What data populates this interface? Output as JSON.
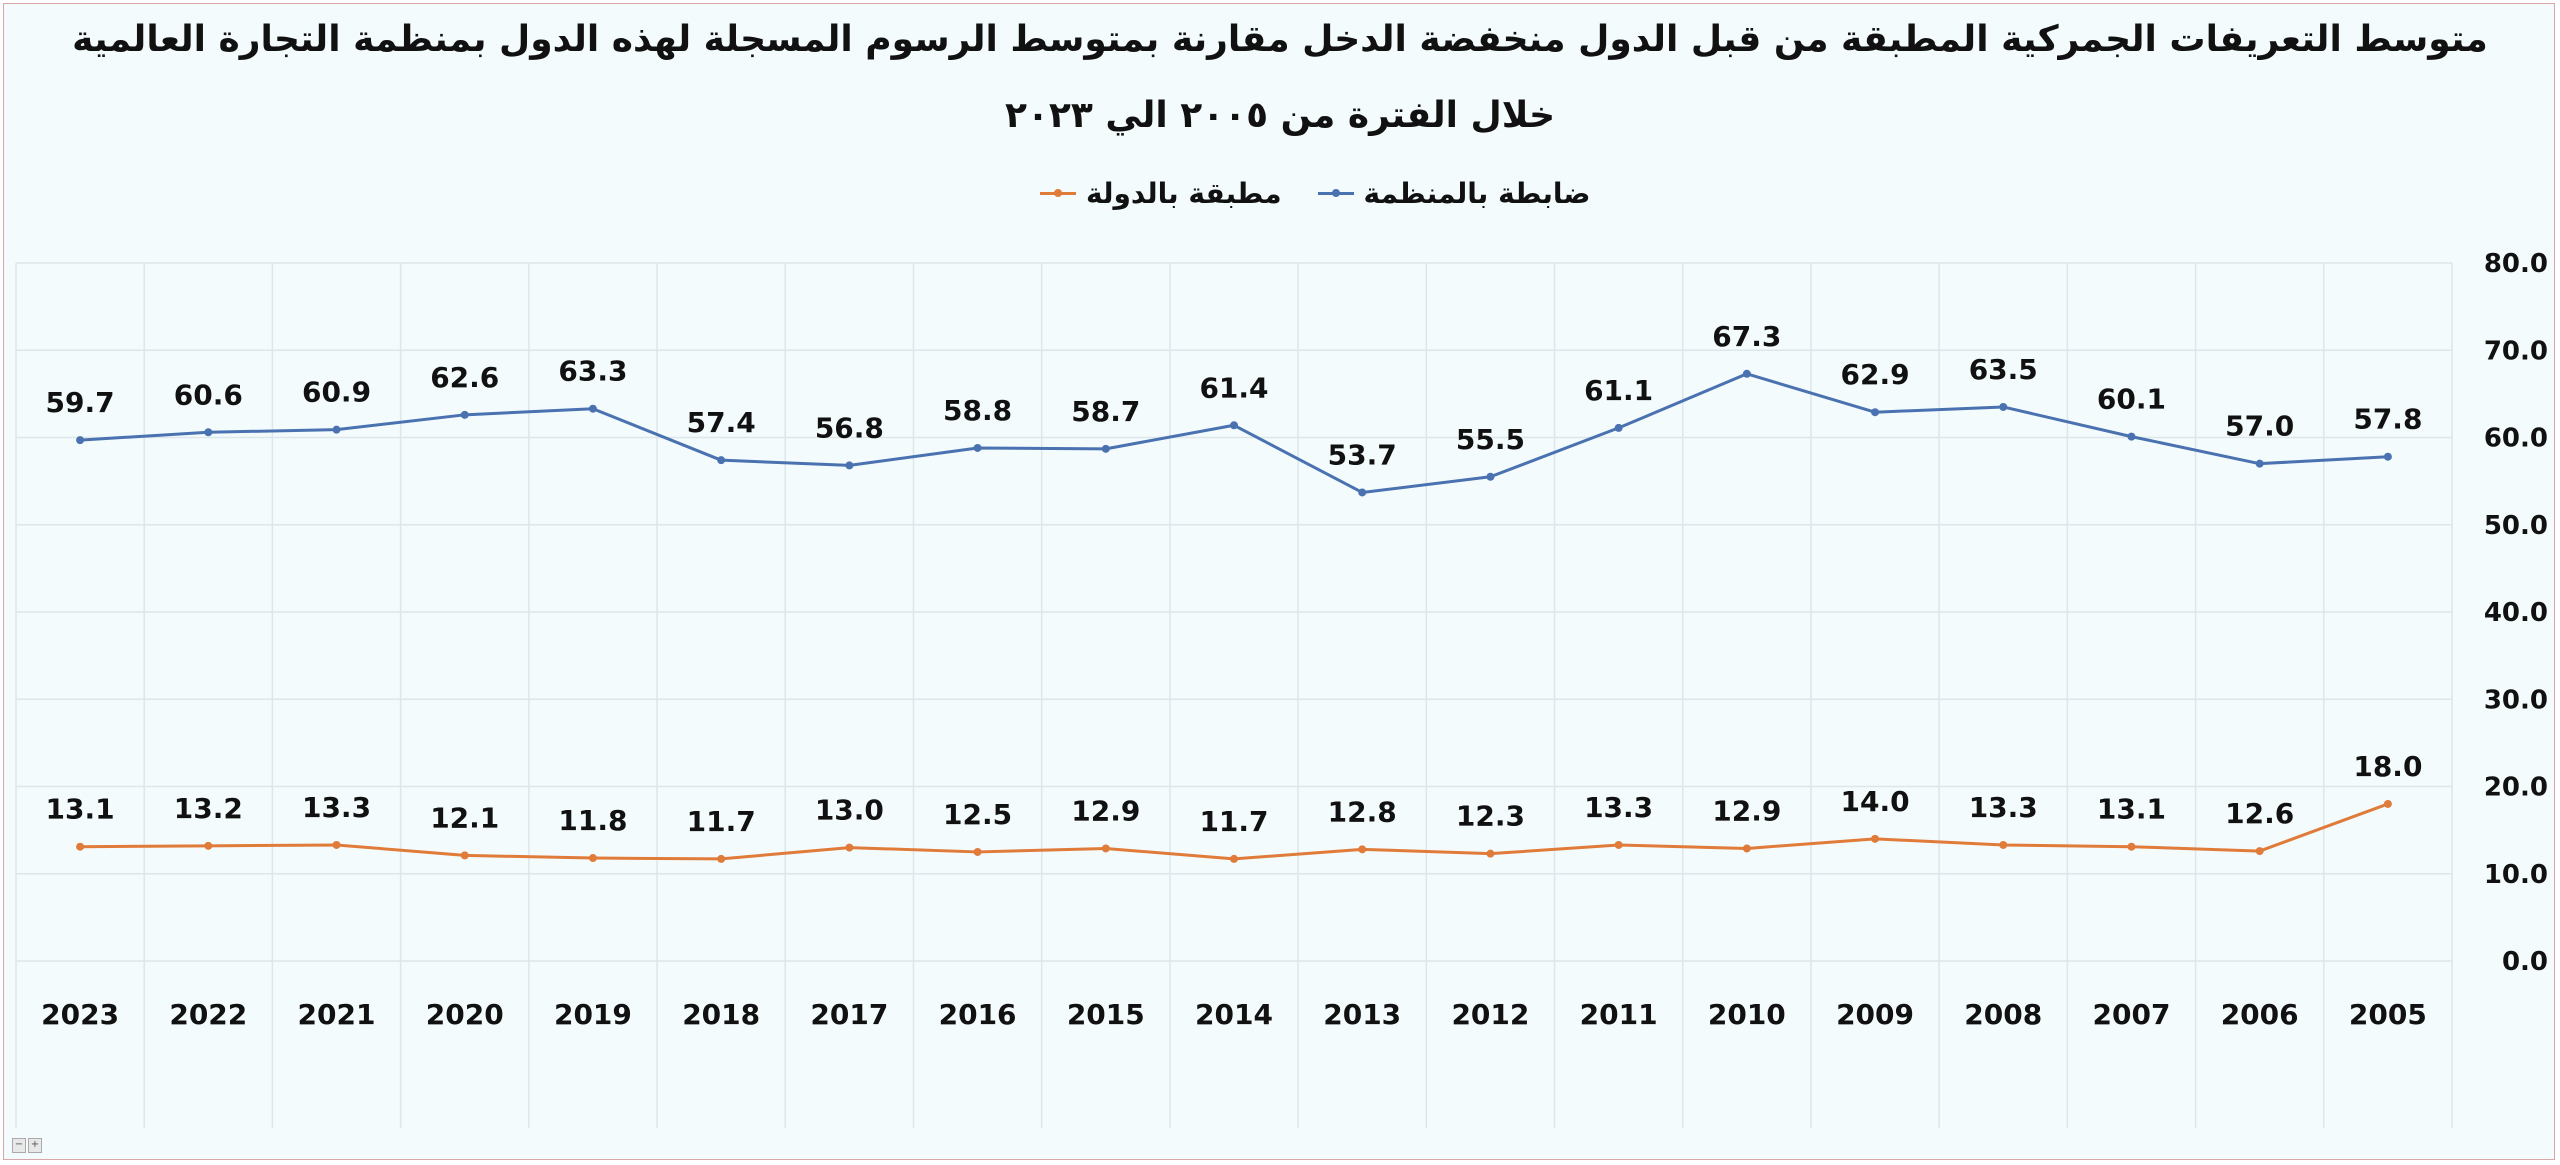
{
  "chart_data": {
    "type": "line",
    "title_line1": "متوسط التعريفات الجمركية المطبقة من قبل الدول منخفضة الدخل مقارنة بمتوسط الرسوم المسجلة لهذه الدول بمنظمة التجارة العالمية",
    "title_line2": "خلال الفترة من ٢٠٠٥ الي ٢٠٢٣",
    "categories": [
      "2023",
      "2022",
      "2021",
      "2020",
      "2019",
      "2018",
      "2017",
      "2016",
      "2015",
      "2014",
      "2013",
      "2012",
      "2011",
      "2010",
      "2009",
      "2008",
      "2007",
      "2006",
      "2005"
    ],
    "series": [
      {
        "name": "ضابطة بالمنظمة",
        "color": "#4a72b0",
        "values": [
          59.7,
          60.6,
          60.9,
          62.6,
          63.3,
          57.4,
          56.8,
          58.8,
          58.7,
          61.4,
          53.7,
          55.5,
          61.1,
          67.3,
          62.9,
          63.5,
          60.1,
          57.0,
          57.8
        ],
        "labels": [
          "59.7",
          "60.6",
          "60.9",
          "62.6",
          "63.3",
          "57.4",
          "56.8",
          "58.8",
          "58.7",
          "61.4",
          "53.7",
          "55.5",
          "61.1",
          "67.3",
          "62.9",
          "63.5",
          "60.1",
          "57.0",
          "57.8"
        ]
      },
      {
        "name": "مطبقة بالدولة",
        "color": "#e07b39",
        "values": [
          13.1,
          13.2,
          13.3,
          12.1,
          11.8,
          11.7,
          13.0,
          12.5,
          12.9,
          11.7,
          12.8,
          12.3,
          13.3,
          12.9,
          14.0,
          13.3,
          13.1,
          12.6,
          18.0
        ],
        "labels": [
          "13.1",
          "13.2",
          "13.3",
          "12.1",
          "11.8",
          "11.7",
          "13.0",
          "12.5",
          "12.9",
          "11.7",
          "12.8",
          "12.3",
          "13.3",
          "12.9",
          "14.0",
          "13.3",
          "13.1",
          "12.6",
          "18.0"
        ]
      }
    ],
    "yaxis": {
      "min": 0,
      "max": 80,
      "step": 10,
      "position": "right",
      "tick_labels": [
        "0.0",
        "10.0",
        "20.0",
        "30.0",
        "40.0",
        "50.0",
        "60.0",
        "70.0",
        "80.0"
      ]
    },
    "grid": true,
    "legend_position": "top-center"
  },
  "ui": {
    "corner_minus": "−",
    "corner_plus": "+"
  }
}
